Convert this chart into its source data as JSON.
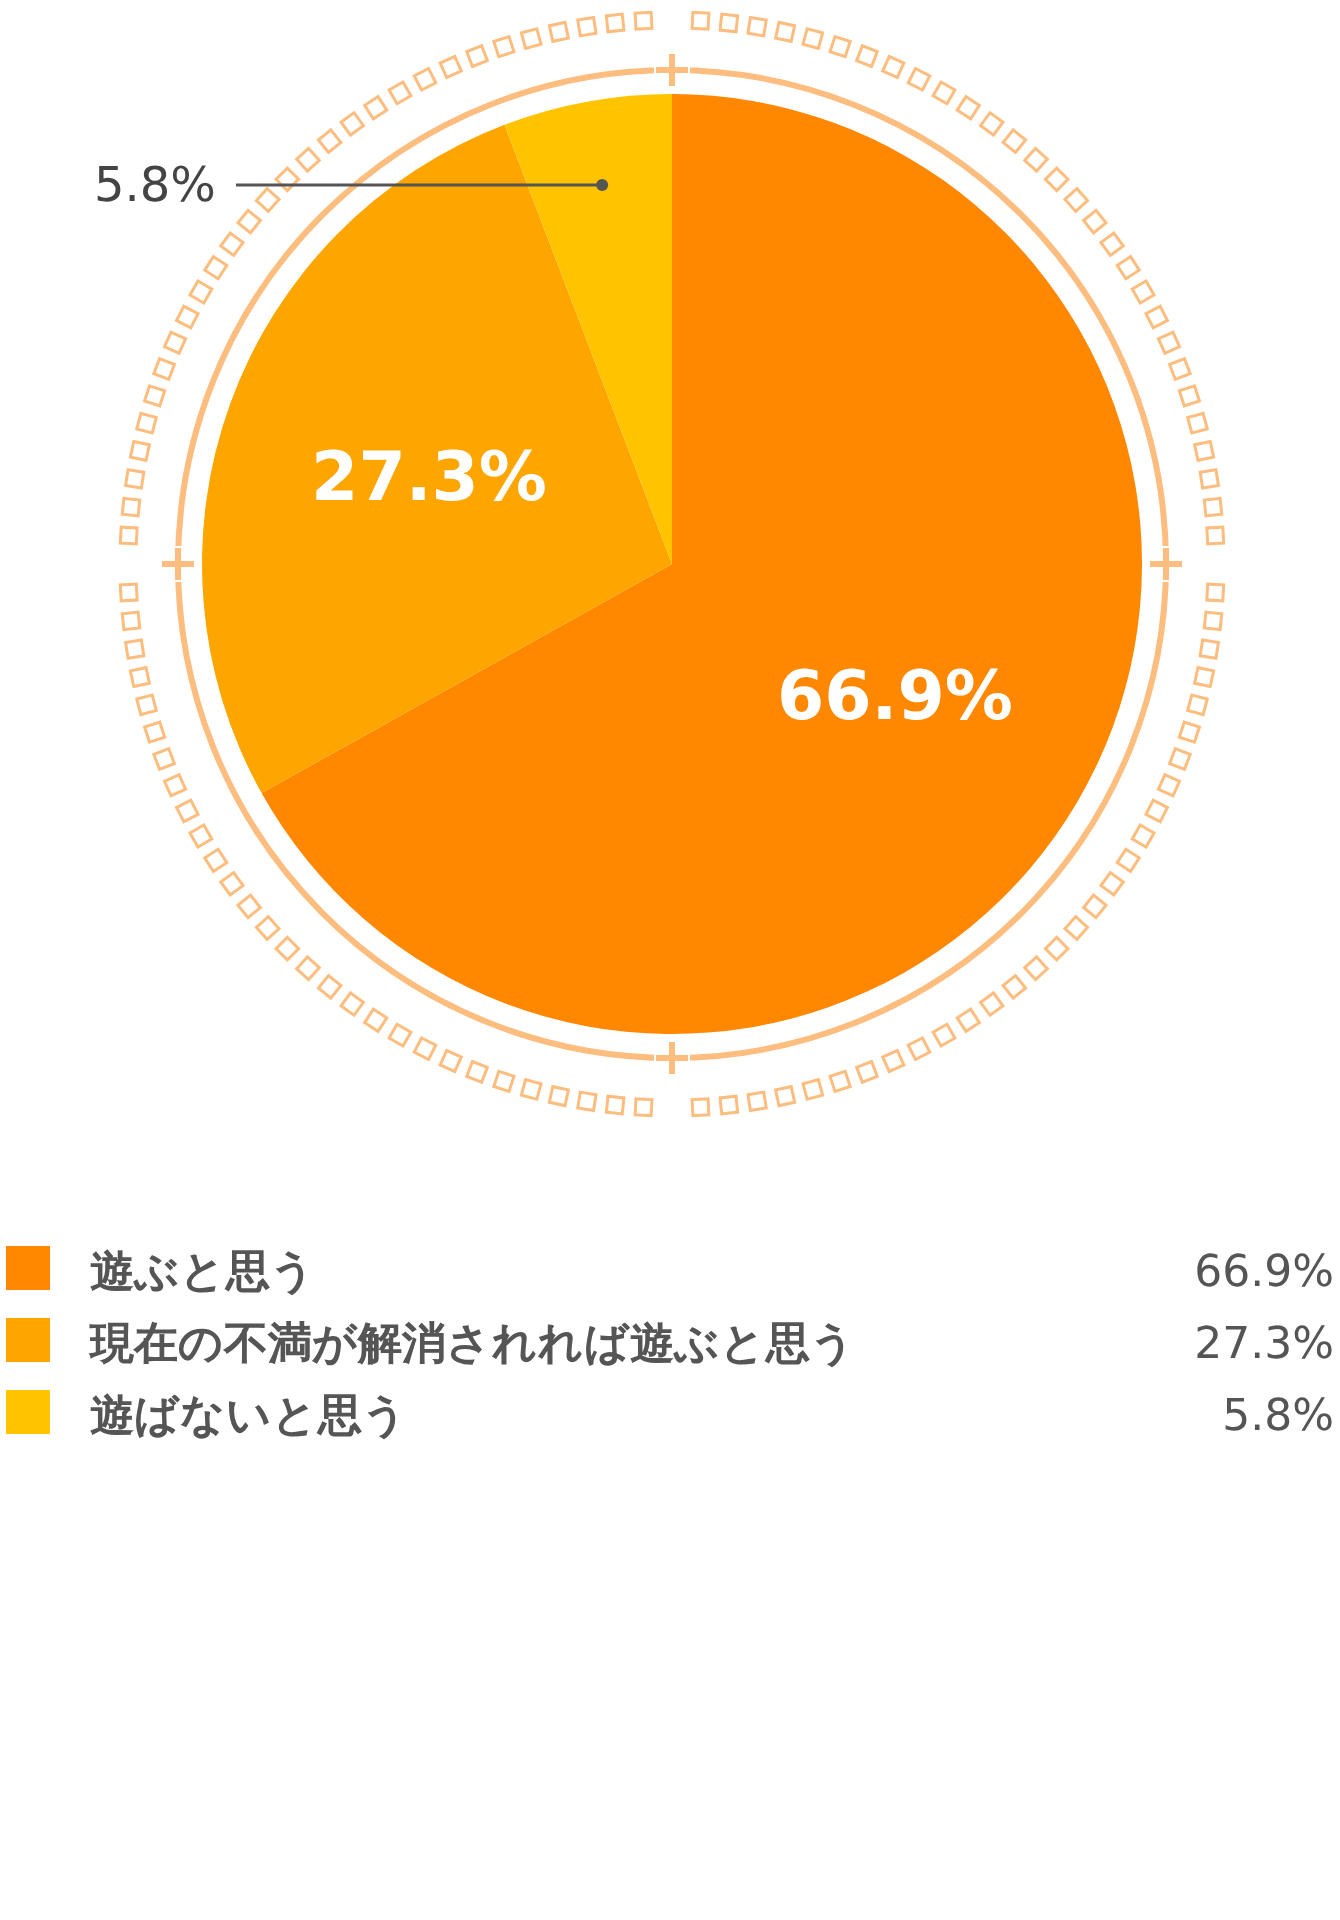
{
  "chart_data": {
    "type": "pie",
    "categories": [
      "遊ぶと思う",
      "現在の不満が解消されれば遊ぶと思う",
      "遊ばないと思う"
    ],
    "values": [
      66.9,
      27.3,
      5.8
    ],
    "colors": [
      "#ff8800",
      "#ffa500",
      "#ffc300"
    ],
    "value_labels": [
      "66.9%",
      "27.3%",
      "5.8%"
    ],
    "legend": "bottom"
  }
}
